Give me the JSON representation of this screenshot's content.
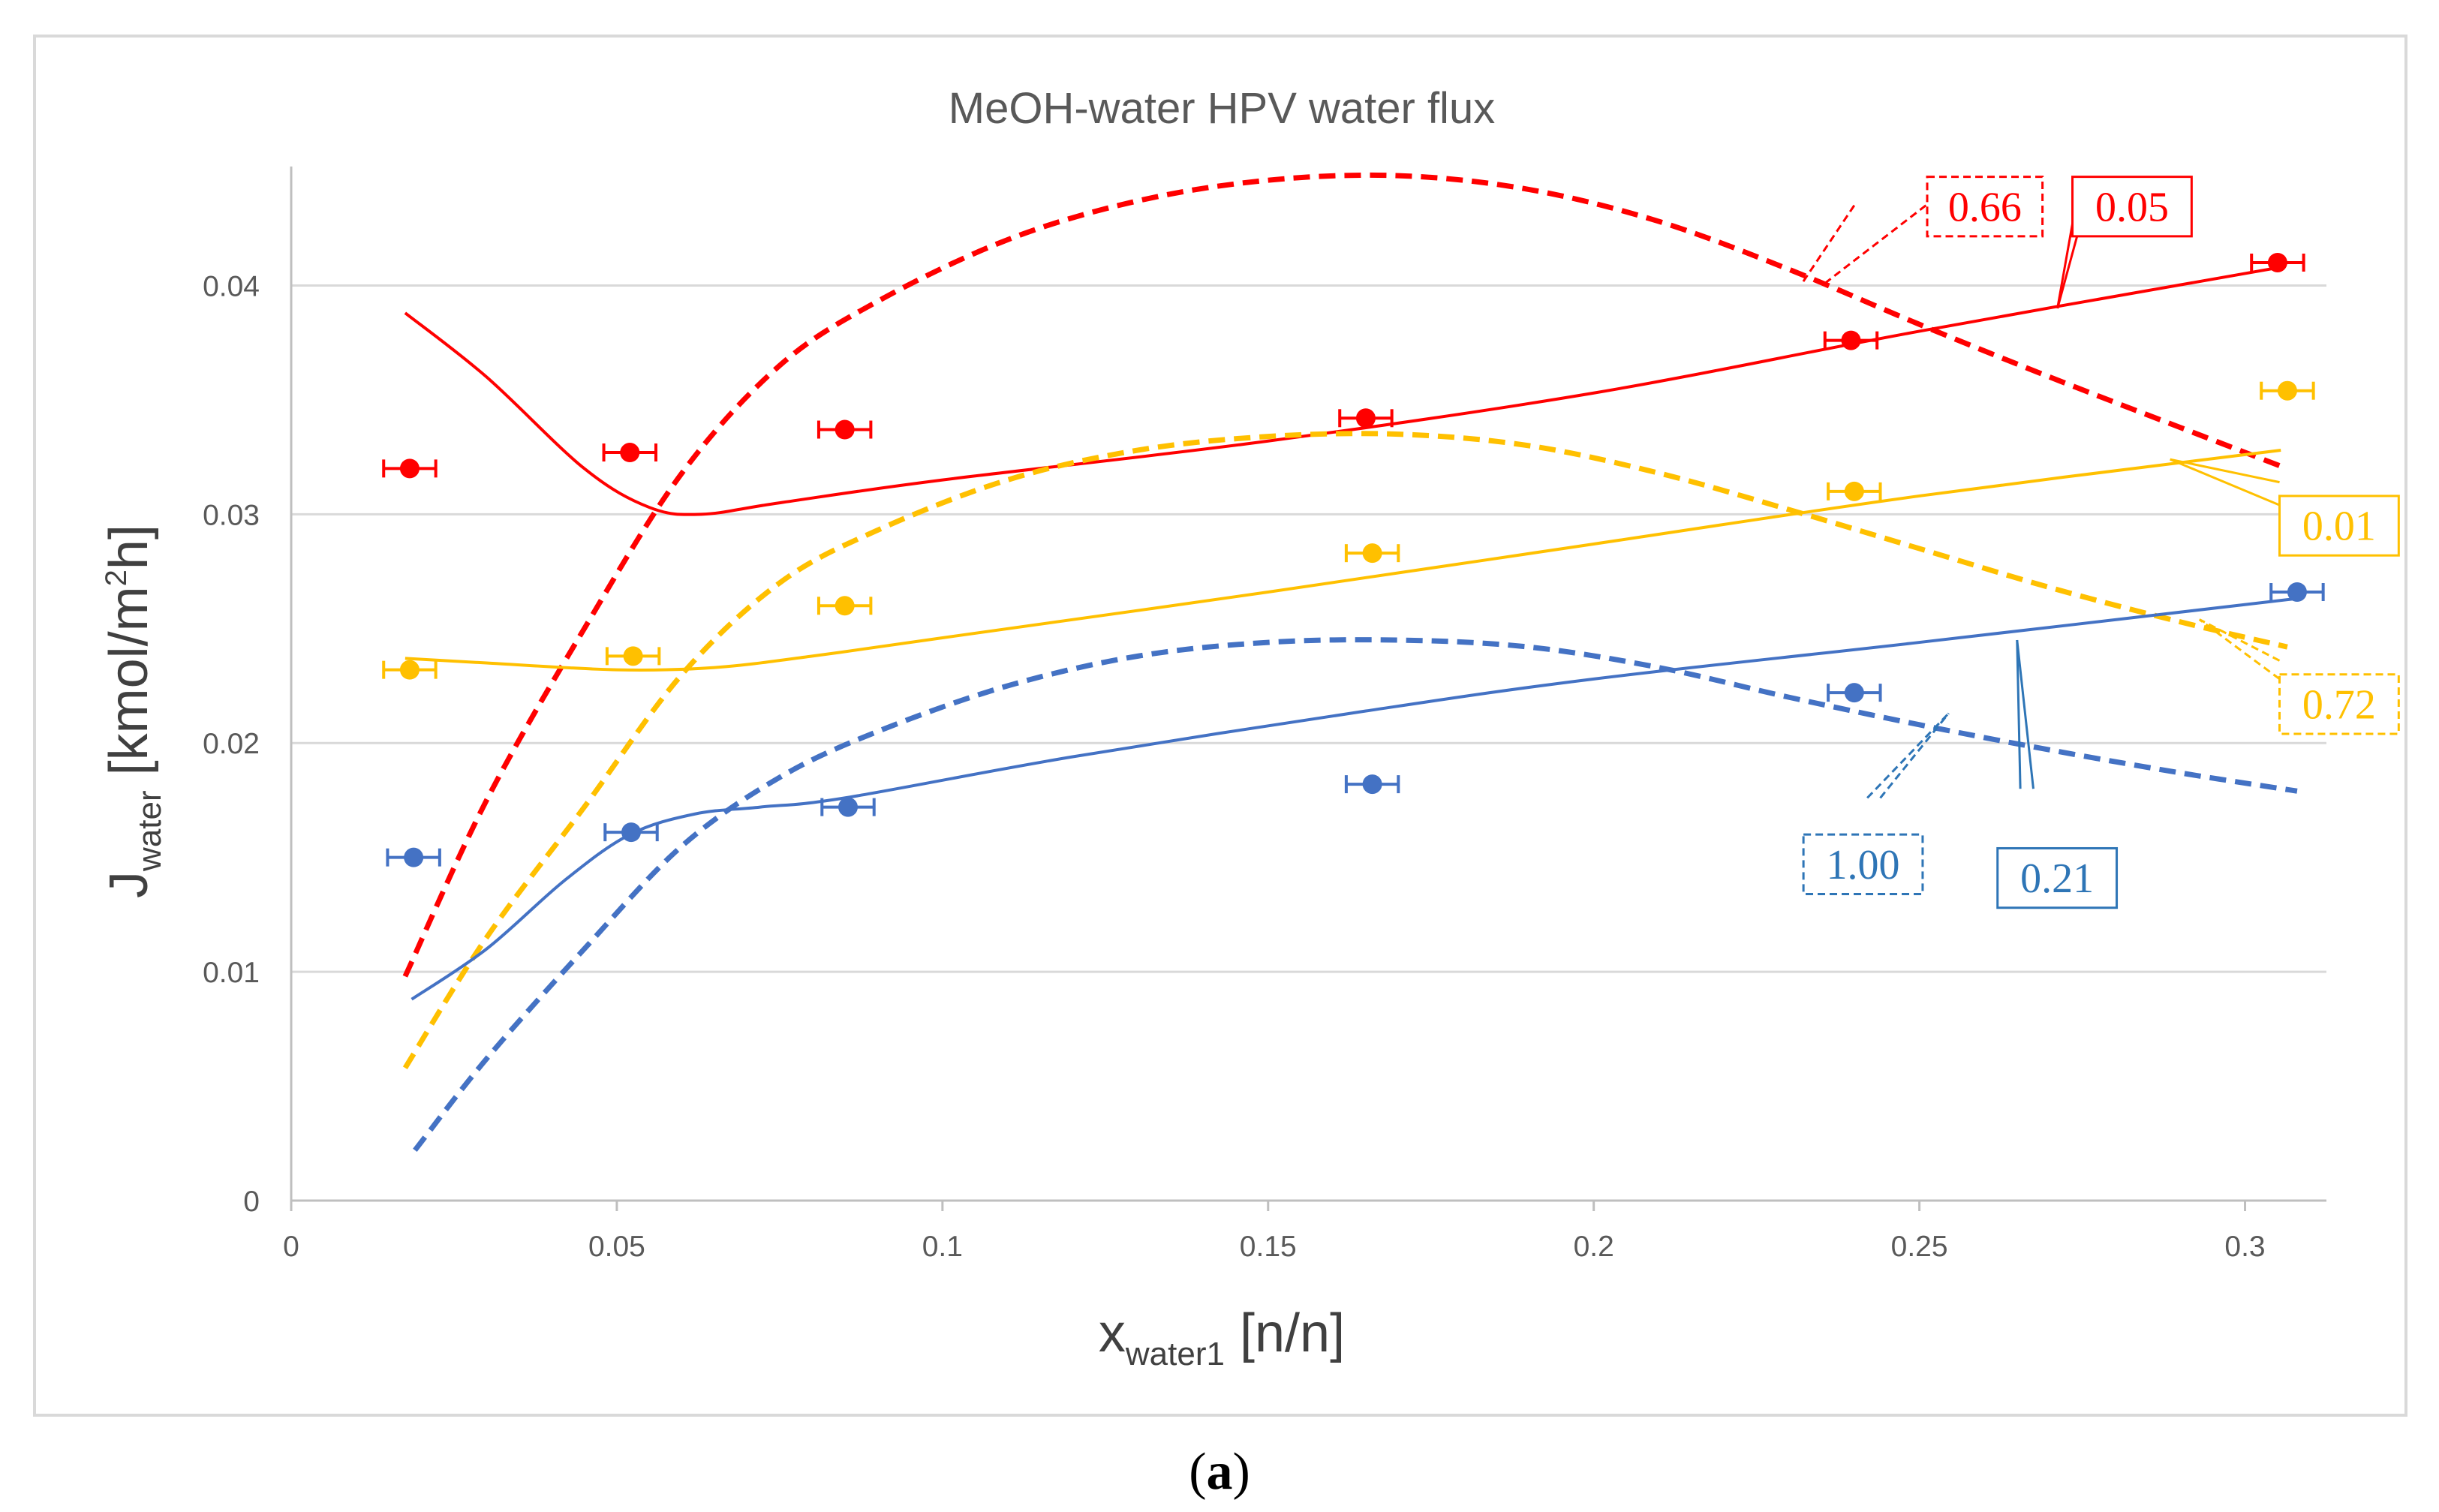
{
  "chart_data": {
    "type": "line",
    "title": "MeOH-water HPV water flux",
    "xlabel": {
      "main": "x",
      "sub": "water1",
      "unit": " [n/n]"
    },
    "ylabel": {
      "main": "J",
      "sub": "water",
      "unit_pre": " [kmol/m",
      "sup": "2",
      "unit_post": "h]"
    },
    "xlim": [
      0,
      0.3125
    ],
    "ylim": [
      0,
      0.045
    ],
    "xticks": [
      0,
      0.05,
      0.1,
      0.15,
      0.2,
      0.25,
      0.3
    ],
    "xtick_labels": [
      "0",
      "0.05",
      "0.1",
      "0.15",
      "0.2",
      "0.25",
      "0.3"
    ],
    "yticks": [
      0,
      0.01,
      0.02,
      0.03,
      0.04
    ],
    "ytick_labels": [
      "0",
      "0.01",
      "0.02",
      "0.03",
      "0.04"
    ],
    "grid": "horizontal",
    "caption": {
      "open": "(",
      "letter": "a",
      "close": ")"
    },
    "colors": {
      "red": "#ff0000",
      "yellow": "#ffc000",
      "blue": "#4472c4",
      "blue_label": "#2e75b6"
    },
    "markers": [
      {
        "name": "red",
        "color": "#ff0000",
        "xerr": 0.004,
        "points": [
          [
            0.0182,
            0.032
          ],
          [
            0.052,
            0.0327
          ],
          [
            0.085,
            0.0337
          ],
          [
            0.165,
            0.0342
          ],
          [
            0.2395,
            0.0376
          ],
          [
            0.305,
            0.041
          ]
        ]
      },
      {
        "name": "yellow",
        "color": "#ffc000",
        "xerr": 0.004,
        "points": [
          [
            0.0182,
            0.0232
          ],
          [
            0.0525,
            0.0238
          ],
          [
            0.085,
            0.026
          ],
          [
            0.166,
            0.0283
          ],
          [
            0.24,
            0.031
          ],
          [
            0.3065,
            0.0354
          ]
        ]
      },
      {
        "name": "blue",
        "color": "#4472c4",
        "xerr": 0.004,
        "points": [
          [
            0.0188,
            0.015
          ],
          [
            0.0522,
            0.0161
          ],
          [
            0.0855,
            0.0172
          ],
          [
            0.166,
            0.0182
          ],
          [
            0.24,
            0.0222
          ],
          [
            0.308,
            0.0266
          ]
        ]
      }
    ],
    "curves": [
      {
        "name": "red-solid",
        "color": "#ff0000",
        "dashed": false,
        "points": [
          [
            0.0175,
            0.0388
          ],
          [
            0.03,
            0.036
          ],
          [
            0.045,
            0.032
          ],
          [
            0.055,
            0.0303
          ],
          [
            0.063,
            0.03
          ],
          [
            0.075,
            0.0305
          ],
          [
            0.1,
            0.0315
          ],
          [
            0.15,
            0.0332
          ],
          [
            0.2,
            0.0353
          ],
          [
            0.25,
            0.038
          ],
          [
            0.3055,
            0.0408
          ]
        ]
      },
      {
        "name": "red-dashed",
        "color": "#ff0000",
        "dashed": true,
        "points": [
          [
            0.0175,
            0.0098
          ],
          [
            0.03,
            0.0175
          ],
          [
            0.045,
            0.025
          ],
          [
            0.06,
            0.0318
          ],
          [
            0.075,
            0.0365
          ],
          [
            0.09,
            0.0393
          ],
          [
            0.11,
            0.042
          ],
          [
            0.13,
            0.0437
          ],
          [
            0.15,
            0.0446
          ],
          [
            0.17,
            0.0448
          ],
          [
            0.19,
            0.0442
          ],
          [
            0.21,
            0.0428
          ],
          [
            0.23,
            0.0407
          ],
          [
            0.25,
            0.0383
          ],
          [
            0.27,
            0.036
          ],
          [
            0.29,
            0.0338
          ],
          [
            0.3055,
            0.0321
          ]
        ]
      },
      {
        "name": "yellow-solid",
        "color": "#ffc000",
        "dashed": false,
        "points": [
          [
            0.0175,
            0.0237
          ],
          [
            0.03,
            0.0235
          ],
          [
            0.05,
            0.0232
          ],
          [
            0.065,
            0.0233
          ],
          [
            0.08,
            0.0238
          ],
          [
            0.1,
            0.0246
          ],
          [
            0.15,
            0.0266
          ],
          [
            0.2,
            0.0287
          ],
          [
            0.25,
            0.0308
          ],
          [
            0.3055,
            0.0328
          ]
        ]
      },
      {
        "name": "yellow-dashed",
        "color": "#ffc000",
        "dashed": true,
        "points": [
          [
            0.0175,
            0.0058
          ],
          [
            0.03,
            0.0115
          ],
          [
            0.045,
            0.0172
          ],
          [
            0.06,
            0.023
          ],
          [
            0.075,
            0.027
          ],
          [
            0.09,
            0.0293
          ],
          [
            0.11,
            0.0315
          ],
          [
            0.13,
            0.0328
          ],
          [
            0.15,
            0.0334
          ],
          [
            0.17,
            0.0335
          ],
          [
            0.19,
            0.033
          ],
          [
            0.21,
            0.0318
          ],
          [
            0.23,
            0.0302
          ],
          [
            0.25,
            0.0285
          ],
          [
            0.27,
            0.0268
          ],
          [
            0.29,
            0.0253
          ],
          [
            0.3065,
            0.0242
          ]
        ]
      },
      {
        "name": "blue-solid",
        "color": "#4472c4",
        "dashed": false,
        "points": [
          [
            0.0185,
            0.0088
          ],
          [
            0.03,
            0.011
          ],
          [
            0.042,
            0.014
          ],
          [
            0.052,
            0.016
          ],
          [
            0.062,
            0.0169
          ],
          [
            0.072,
            0.0172
          ],
          [
            0.085,
            0.0176
          ],
          [
            0.12,
            0.0194
          ],
          [
            0.165,
            0.0214
          ],
          [
            0.2,
            0.0228
          ],
          [
            0.25,
            0.0244
          ],
          [
            0.3075,
            0.0263
          ]
        ]
      },
      {
        "name": "blue-dashed",
        "color": "#4472c4",
        "dashed": true,
        "points": [
          [
            0.019,
            0.0022
          ],
          [
            0.03,
            0.0062
          ],
          [
            0.045,
            0.011
          ],
          [
            0.06,
            0.0155
          ],
          [
            0.075,
            0.0185
          ],
          [
            0.09,
            0.0205
          ],
          [
            0.11,
            0.0225
          ],
          [
            0.13,
            0.0238
          ],
          [
            0.15,
            0.0244
          ],
          [
            0.17,
            0.0245
          ],
          [
            0.19,
            0.0242
          ],
          [
            0.21,
            0.0233
          ],
          [
            0.23,
            0.022
          ],
          [
            0.25,
            0.0208
          ],
          [
            0.27,
            0.0197
          ],
          [
            0.29,
            0.0187
          ],
          [
            0.308,
            0.0179
          ]
        ]
      }
    ],
    "annotations": [
      {
        "text": "0.66",
        "color": "#ff0000",
        "dashed": true,
        "pos": [
          0.2512,
          0.04475
        ],
        "w": 0.0177,
        "h": 0.0026,
        "lines": [
          [
            0.24,
            0.0435,
            0.232,
            0.0401
          ],
          [
            0.251,
            0.0435,
            0.2355,
            0.0401
          ]
        ]
      },
      {
        "text": "0.05",
        "color": "#ff0000",
        "dashed": false,
        "pos": [
          0.2735,
          0.04475
        ],
        "w": 0.0183,
        "h": 0.0026,
        "lines": [
          [
            0.274,
            0.0435,
            0.2712,
            0.039
          ],
          [
            0.2755,
            0.0435,
            0.2712,
            0.039
          ]
        ]
      },
      {
        "text": "0.01",
        "color": "#ffc000",
        "dashed": false,
        "pos": [
          0.3053,
          0.0308
        ],
        "w": 0.0183,
        "h": 0.0026,
        "lines": [
          [
            0.3053,
            0.0314,
            0.2885,
            0.0324
          ],
          [
            0.3053,
            0.0304,
            0.2885,
            0.0324
          ]
        ]
      },
      {
        "text": "0.72",
        "color": "#ffc000",
        "dashed": true,
        "pos": [
          0.3053,
          0.023
        ],
        "w": 0.0183,
        "h": 0.0026,
        "lines": [
          [
            0.3053,
            0.0236,
            0.293,
            0.0254
          ],
          [
            0.3053,
            0.0228,
            0.293,
            0.0254
          ]
        ]
      },
      {
        "text": "1.00",
        "color": "#2e75b6",
        "dashed": true,
        "pos": [
          0.2322,
          0.016
        ],
        "w": 0.0183,
        "h": 0.0026,
        "lines": [
          [
            0.242,
            0.0176,
            0.2545,
            0.0213
          ],
          [
            0.244,
            0.0176,
            0.2545,
            0.0213
          ]
        ]
      },
      {
        "text": "0.21",
        "color": "#2e75b6",
        "dashed": false,
        "pos": [
          0.262,
          0.0154
        ],
        "w": 0.0183,
        "h": 0.0026,
        "lines": [
          [
            0.2655,
            0.018,
            0.265,
            0.0245
          ],
          [
            0.2675,
            0.018,
            0.265,
            0.0245
          ]
        ]
      }
    ]
  }
}
